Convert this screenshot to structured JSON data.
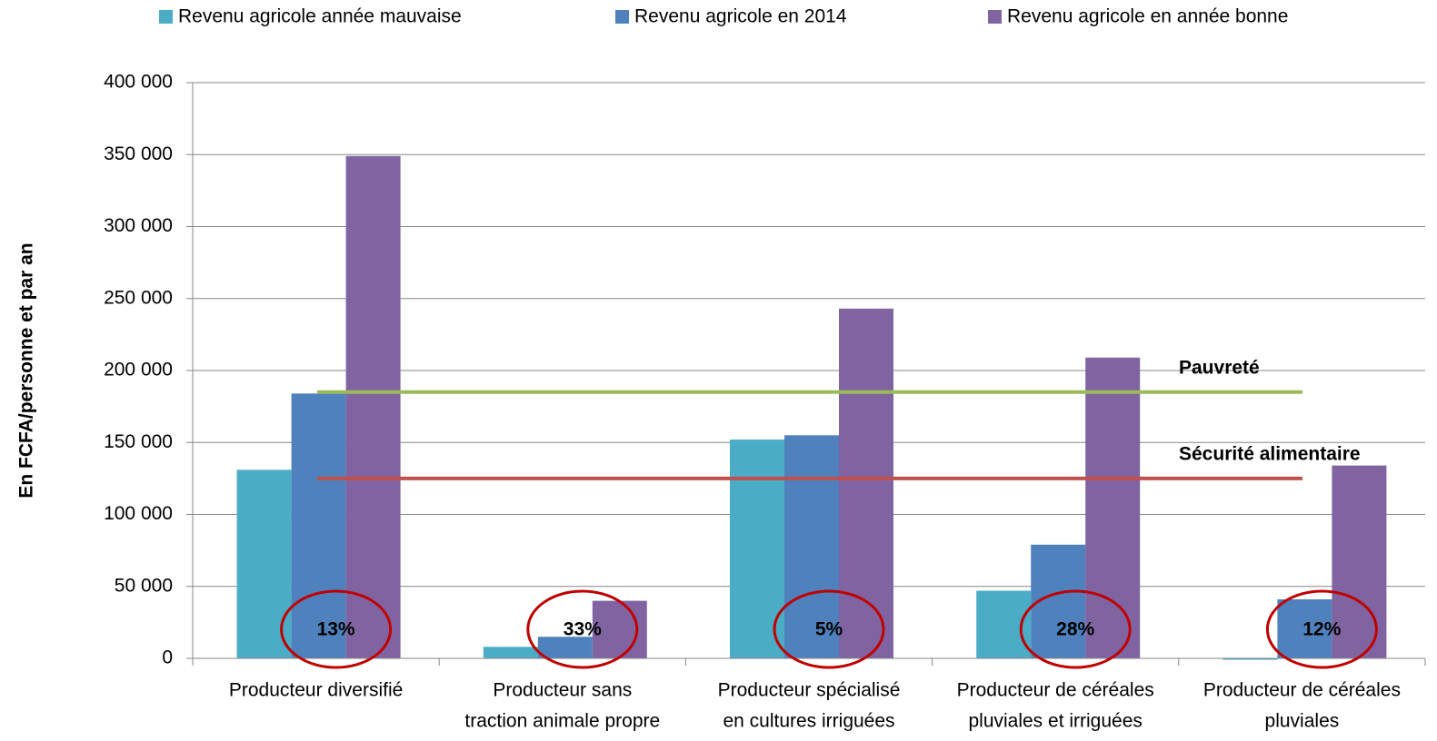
{
  "chart_data": {
    "type": "bar",
    "y_axis_label": "En FCFA/personne et par an",
    "categories": [
      [
        "Producteur diversifié"
      ],
      [
        "Producteur sans",
        "traction animale propre"
      ],
      [
        "Producteur spécialisé",
        "en cultures irriguées"
      ],
      [
        "Producteur de céréales",
        "pluviales et irriguées"
      ],
      [
        "Producteur de céréales",
        "pluviales"
      ]
    ],
    "series": [
      {
        "name": "Revenu agricole année mauvaise",
        "color": "#4bacc6",
        "values": [
          131000,
          8000,
          152000,
          47000,
          -1000
        ]
      },
      {
        "name": "Revenu agricole en 2014",
        "color": "#4f81bd",
        "values": [
          184000,
          15000,
          155000,
          79000,
          41000
        ]
      },
      {
        "name": "Revenu agricole en année bonne",
        "color": "#8064a2",
        "values": [
          349000,
          40000,
          243000,
          209000,
          134000
        ]
      }
    ],
    "reference_lines": [
      {
        "label": "Pauvreté",
        "value": 185000,
        "color": "#9bbb59"
      },
      {
        "label": "Sécurité alimentaire",
        "value": 125000,
        "color": "#c0504d"
      }
    ],
    "circle_labels": [
      "13%",
      "33%",
      "5%",
      "28%",
      "12%"
    ],
    "ylim": [
      0,
      400000
    ],
    "yticks": [
      0,
      {
        "value": 50000,
        "label": "50 000"
      },
      {
        "value": 100000,
        "label": "100 000"
      },
      {
        "value": 150000,
        "label": "150 000"
      },
      {
        "value": 200000,
        "label": "200 000"
      },
      {
        "value": 250000,
        "label": "250 000"
      },
      {
        "value": 300000,
        "label": "300 000"
      },
      {
        "value": 350000,
        "label": "350 000"
      },
      {
        "value": 400000,
        "label": "400 000"
      }
    ],
    "grid": true,
    "legend": "top"
  }
}
